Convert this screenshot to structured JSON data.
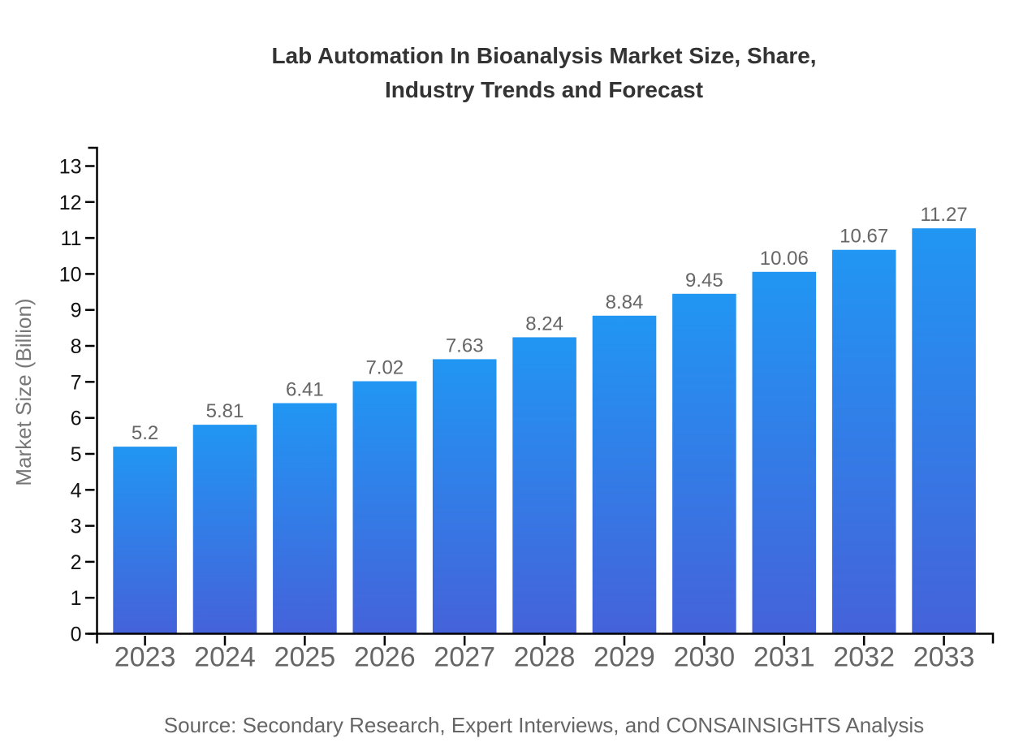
{
  "chart_data": {
    "type": "bar",
    "title": "Lab Automation In Bioanalysis Market Size, Share, Industry Trends and Forecast",
    "title_lines": [
      "Lab Automation In Bioanalysis Market Size, Share,",
      "Industry Trends and Forecast"
    ],
    "categories": [
      "2023",
      "2024",
      "2025",
      "2026",
      "2027",
      "2028",
      "2029",
      "2030",
      "2031",
      "2032",
      "2033"
    ],
    "values": [
      5.2,
      5.81,
      6.41,
      7.02,
      7.63,
      8.24,
      8.84,
      9.45,
      10.06,
      10.67,
      11.27
    ],
    "xlabel": "",
    "ylabel": "Market Size (Billion)",
    "ylim": [
      0,
      13
    ],
    "ytick_step": 1,
    "yticks": [
      0,
      1,
      2,
      3,
      4,
      5,
      6,
      7,
      8,
      9,
      10,
      11,
      12,
      13
    ],
    "grid": false,
    "legend_position": "none",
    "colors": {
      "bar_gradient_top": "#2196F3",
      "bar_gradient_bottom": "#4562DA"
    },
    "source": "Source: Secondary Research, Expert Interviews, and CONSAINSIGHTS Analysis"
  }
}
